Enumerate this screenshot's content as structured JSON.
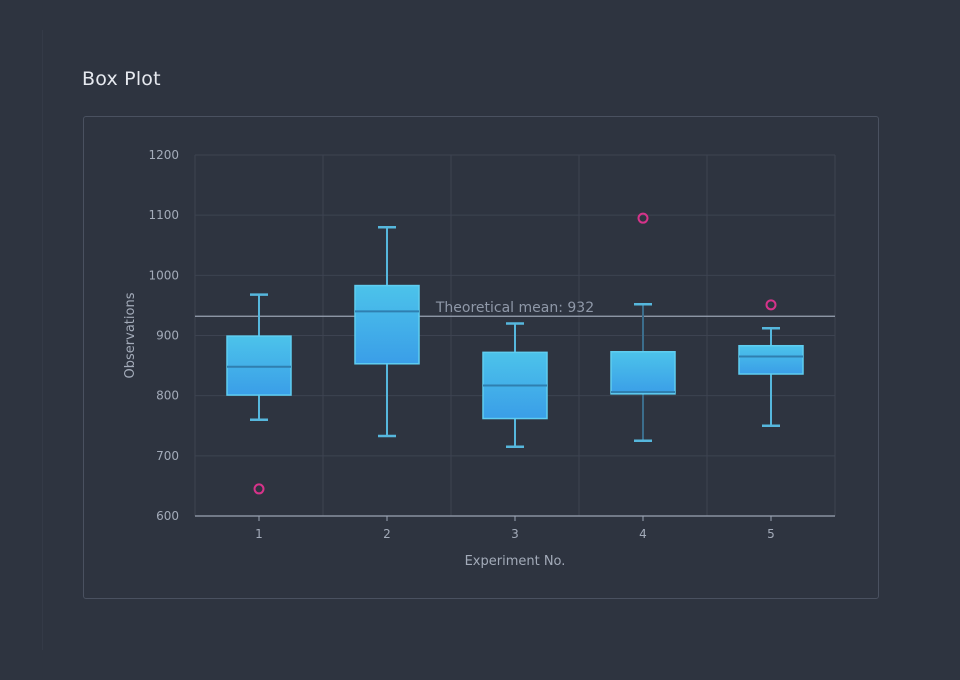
{
  "page": {
    "title": "Box Plot"
  },
  "colors": {
    "background": "#2e3440",
    "grid": "#3d4351",
    "axis": "#9aa3b3",
    "box_fill_top": "#4cc3ea",
    "box_fill_bottom": "#3a9ee8",
    "box_stroke": "#5fcdf0",
    "median": "#2f7fb0",
    "whisker": "#56b7dd",
    "whisker_dark": "#3b6d8c",
    "outlier": "#d6338a",
    "ref_line": "#9aa3b3",
    "text": "#a3abb9"
  },
  "chart_data": {
    "type": "box",
    "title": "Box Plot",
    "xlabel": "Experiment No.",
    "ylabel": "Observations",
    "ylim": [
      600,
      1200
    ],
    "yticks": [
      600,
      700,
      800,
      900,
      1000,
      1100,
      1200
    ],
    "categories": [
      "1",
      "2",
      "3",
      "4",
      "5"
    ],
    "boxes": [
      {
        "category": "1",
        "low": 760,
        "q1": 801,
        "median": 848,
        "q3": 899,
        "high": 968,
        "outliers": [
          645
        ]
      },
      {
        "category": "2",
        "low": 733,
        "q1": 853,
        "median": 940,
        "q3": 983,
        "high": 1080,
        "outliers": []
      },
      {
        "category": "3",
        "low": 715,
        "q1": 762,
        "median": 817,
        "q3": 872,
        "high": 920,
        "outliers": []
      },
      {
        "category": "4",
        "low": 725,
        "q1": 803,
        "median": 806,
        "q3": 873,
        "high": 952,
        "outliers": [
          1095
        ]
      },
      {
        "category": "5",
        "low": 750,
        "q1": 836,
        "median": 865,
        "q3": 883,
        "high": 912,
        "outliers": [
          951
        ]
      }
    ],
    "reference_line": {
      "value": 932,
      "label": "Theoretical mean: 932"
    },
    "grid": true,
    "legend": "none"
  }
}
